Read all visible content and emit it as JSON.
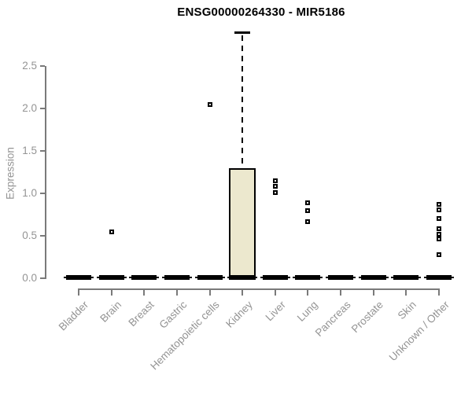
{
  "title": "ENSG00000264330 - MIR5186",
  "colors": {
    "box_fill": "#ece8ce",
    "box_border": "#000000",
    "axis": "#7a7a7a",
    "label": "#949494",
    "outlier": "#000000",
    "background": "#ffffff"
  },
  "chart_data": {
    "type": "boxplot",
    "title": "ENSG00000264330 - MIR5186",
    "xlabel": "",
    "ylabel": "Expression",
    "ylim": [
      0,
      2.9
    ],
    "yticks": [
      0.0,
      0.5,
      1.0,
      1.5,
      2.0,
      2.5
    ],
    "ytick_labels": [
      "0.0",
      "0.5",
      "1.0",
      "1.5",
      "2.0",
      "2.5"
    ],
    "grid": false,
    "legend": false,
    "categories": [
      "Bladder",
      "Brain",
      "Breast",
      "Gastric",
      "Hematopoietic cells",
      "Kidney",
      "Liver",
      "Lung",
      "Pancreas",
      "Prostate",
      "Skin",
      "Unknown / Other"
    ],
    "series": [
      {
        "category": "Bladder",
        "whisker_low": 0,
        "q1": 0,
        "median": 0,
        "q3": 0,
        "whisker_high": 0,
        "outliers": []
      },
      {
        "category": "Brain",
        "whisker_low": 0,
        "q1": 0,
        "median": 0,
        "q3": 0,
        "whisker_high": 0,
        "outliers": [
          0.55
        ]
      },
      {
        "category": "Breast",
        "whisker_low": 0,
        "q1": 0,
        "median": 0,
        "q3": 0,
        "whisker_high": 0,
        "outliers": []
      },
      {
        "category": "Gastric",
        "whisker_low": 0,
        "q1": 0,
        "median": 0,
        "q3": 0,
        "whisker_high": 0,
        "outliers": []
      },
      {
        "category": "Hematopoietic cells",
        "whisker_low": 0,
        "q1": 0,
        "median": 0,
        "q3": 0,
        "whisker_high": 0,
        "outliers": [
          2.05
        ]
      },
      {
        "category": "Kidney",
        "whisker_low": 0,
        "q1": 0,
        "median": 0,
        "q3": 1.3,
        "whisker_high": 2.89,
        "outliers": []
      },
      {
        "category": "Liver",
        "whisker_low": 0,
        "q1": 0,
        "median": 0,
        "q3": 0,
        "whisker_high": 0,
        "outliers": [
          1.15,
          1.08,
          1.01
        ]
      },
      {
        "category": "Lung",
        "whisker_low": 0,
        "q1": 0,
        "median": 0,
        "q3": 0,
        "whisker_high": 0,
        "outliers": [
          0.89,
          0.8,
          0.67
        ]
      },
      {
        "category": "Pancreas",
        "whisker_low": 0,
        "q1": 0,
        "median": 0,
        "q3": 0,
        "whisker_high": 0,
        "outliers": []
      },
      {
        "category": "Prostate",
        "whisker_low": 0,
        "q1": 0,
        "median": 0,
        "q3": 0,
        "whisker_high": 0,
        "outliers": []
      },
      {
        "category": "Skin",
        "whisker_low": 0,
        "q1": 0,
        "median": 0,
        "q3": 0,
        "whisker_high": 0,
        "outliers": []
      },
      {
        "category": "Unknown / Other",
        "whisker_low": 0,
        "q1": 0,
        "median": 0,
        "q3": 0,
        "whisker_high": 0,
        "outliers": [
          0.87,
          0.81,
          0.7,
          0.58,
          0.52,
          0.46,
          0.28
        ]
      }
    ]
  }
}
